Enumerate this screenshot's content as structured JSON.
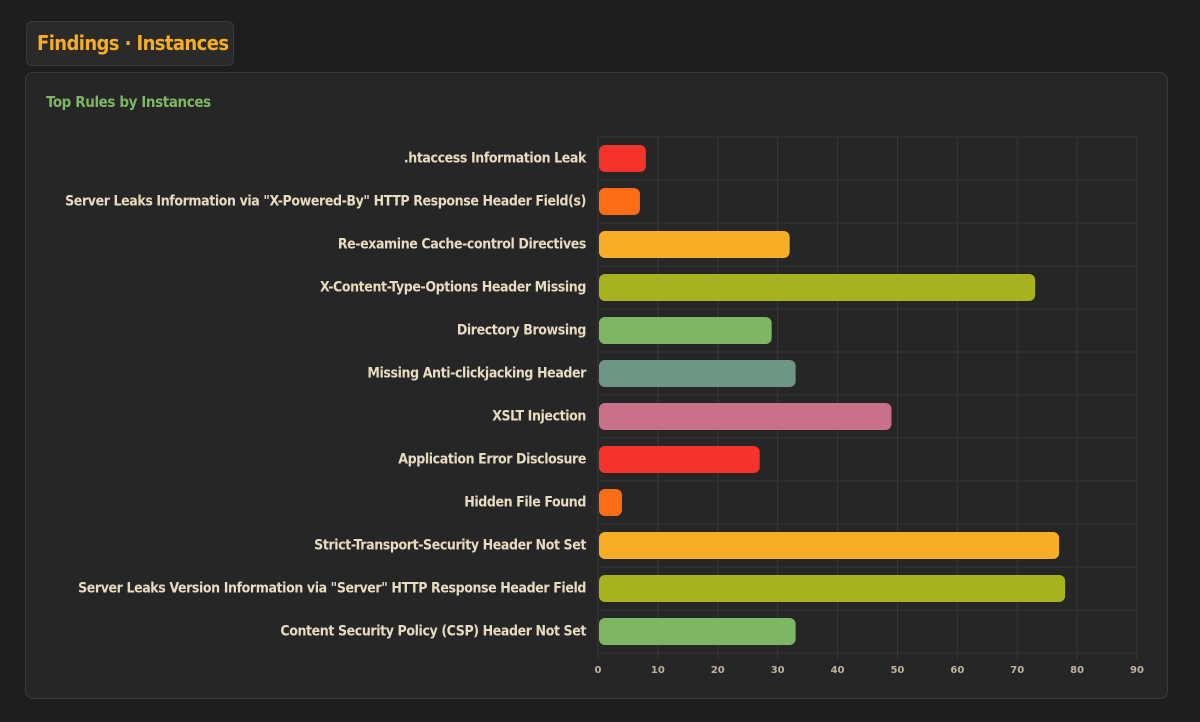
{
  "page": {
    "title": "Findings · Instances"
  },
  "panel": {
    "title": "Top Rules by Instances"
  },
  "colors": {
    "background": "#1e1e1e",
    "panel": "#262626",
    "title": "#f7ae26",
    "panel_title": "#7eb764",
    "label": "#e8dcc0"
  },
  "chart_data": {
    "type": "bar",
    "orientation": "horizontal",
    "categories": [
      ".htaccess Information Leak",
      "Server Leaks Information via \"X-Powered-By\" HTTP Response Header Field(s)",
      "Re-examine Cache-control Directives",
      "X-Content-Type-Options Header Missing",
      "Directory Browsing",
      "Missing Anti-clickjacking Header",
      "XSLT Injection",
      "Application Error Disclosure",
      "Hidden File Found",
      "Strict-Transport-Security Header Not Set",
      "Server Leaks Version Information via \"Server\" HTTP Response Header Field",
      "Content Security Policy (CSP) Header Not Set"
    ],
    "values": [
      8,
      7,
      32,
      73,
      29,
      33,
      49,
      27,
      4,
      77,
      78,
      33
    ],
    "bar_colors": [
      "#f5332a",
      "#fd6d17",
      "#f7ae26",
      "#a8b21e",
      "#7eb764",
      "#6d9784",
      "#c97189",
      "#f5332a",
      "#fd6d17",
      "#f7ae26",
      "#a8b21e",
      "#7eb764"
    ],
    "xlim": [
      0,
      90
    ],
    "xticks": [
      0,
      10,
      20,
      30,
      40,
      50,
      60,
      70,
      80,
      90
    ],
    "grid": true,
    "legend": "none",
    "xlabel": "",
    "ylabel": ""
  }
}
